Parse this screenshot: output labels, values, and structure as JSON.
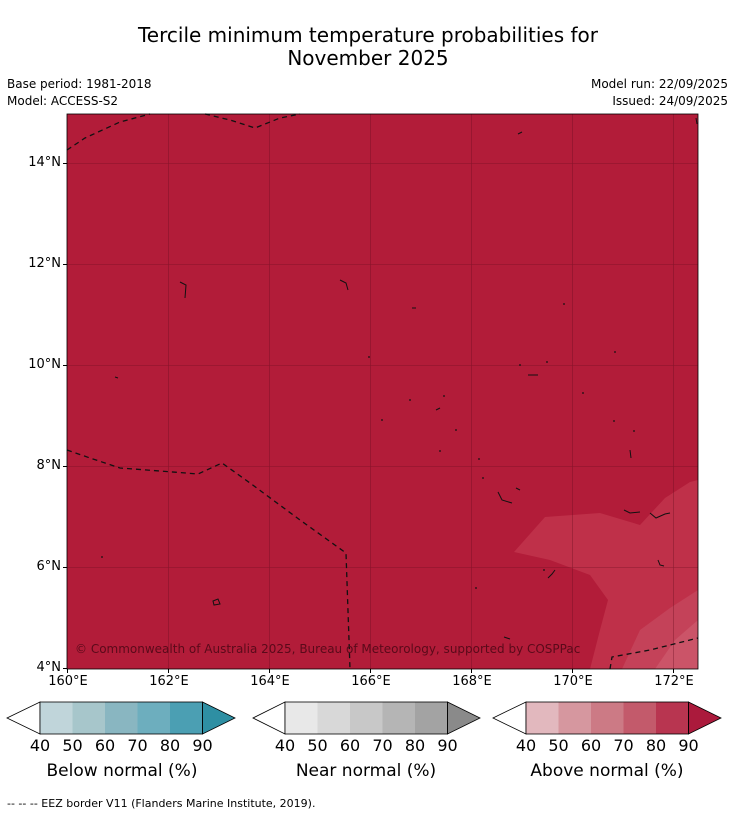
{
  "header": {
    "title_line1": "Tercile minimum temperature probabilities for",
    "title_line2": "November 2025",
    "base_period": "Base period: 1981-2018",
    "model": "Model: ACCESS-S2",
    "model_run": "Model run: 22/09/2025",
    "issued": "Issued: 24/09/2025"
  },
  "map": {
    "copyright": "© Commonwealth of Australia 2025, Bureau of Meteorology, supported by COSPPac",
    "lat_labels": [
      "14°N",
      "12°N",
      "10°N",
      "8°N",
      "6°N",
      "4°N"
    ],
    "lon_labels": [
      "160°E",
      "162°E",
      "164°E",
      "166°E",
      "168°E",
      "170°E",
      "172°E"
    ],
    "colors": {
      "fill_90": "#b21c39",
      "fill_80": "#c0344d",
      "fill_70": "#cc5266"
    }
  },
  "legends": [
    {
      "label": "Below normal (%)",
      "ticks": [
        "40",
        "50",
        "60",
        "70",
        "80",
        "90"
      ],
      "colors": [
        "#c0d5da",
        "#a7c6cb",
        "#89b6c1",
        "#6daebe",
        "#4b9fb3",
        "#2e8fa3"
      ]
    },
    {
      "label": "Near normal (%)",
      "ticks": [
        "40",
        "50",
        "60",
        "70",
        "80",
        "90"
      ],
      "colors": [
        "#e8e8e8",
        "#d8d8d8",
        "#c8c8c8",
        "#b5b5b5",
        "#a3a3a3",
        "#8a8a8a"
      ]
    },
    {
      "label": "Above normal (%)",
      "ticks": [
        "40",
        "50",
        "60",
        "70",
        "80",
        "90"
      ],
      "colors": [
        "#e2b8be",
        "#d6979f",
        "#cc7a85",
        "#c35a6b",
        "#b83550",
        "#ab1a3c"
      ]
    }
  ],
  "footnote": "--  --  -- EEZ border V11 (Flanders Marine Institute, 2019)."
}
